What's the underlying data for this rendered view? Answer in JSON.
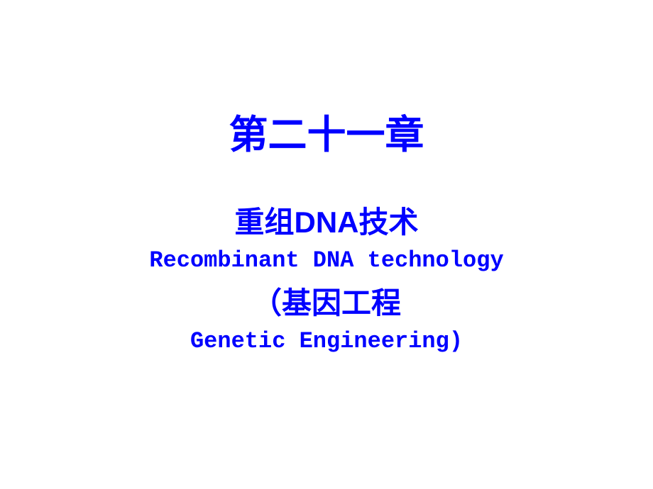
{
  "slide": {
    "chapter_title": "第二十一章",
    "subtitle_cn_1": "重组DNA技术",
    "subtitle_en_1": "Recombinant DNA technology",
    "subtitle_cn_2": "（基因工程",
    "subtitle_en_2": "Genetic Engineering)",
    "styles": {
      "text_color": "#0000ff",
      "background_color": "#ffffff",
      "chapter_title_fontsize": 55,
      "subtitle_cn_fontsize": 42,
      "subtitle_en_fontsize": 32
    }
  }
}
